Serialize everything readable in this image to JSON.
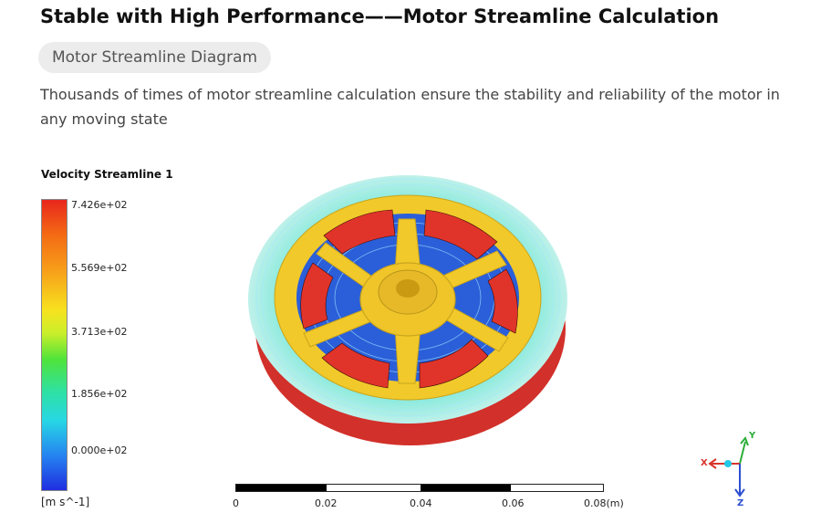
{
  "header": {
    "title": "Stable with High Performance——Motor Streamline Calculation",
    "tag": "Motor Streamline Diagram",
    "description": "Thousands of times of motor streamline calculation ensure the stability and reliability of the motor in any moving state"
  },
  "legend": {
    "title": "Velocity Streamline 1",
    "ticks": [
      "7.426e+02",
      "5.569e+02",
      "3.713e+02",
      "1.856e+02",
      "0.000e+02"
    ],
    "units": "[m s^-1]"
  },
  "scale": {
    "labels": [
      "0",
      "0.02",
      "0.04",
      "0.06",
      "0.08(m)"
    ]
  },
  "axes": {
    "x": "X",
    "y": "Y",
    "z": "Z"
  },
  "colors": {
    "rotor": "#f2c92a",
    "coil": "#e0342a",
    "flow_outer": "#3fe0d6",
    "flow_inner": "#2b5fd9"
  }
}
